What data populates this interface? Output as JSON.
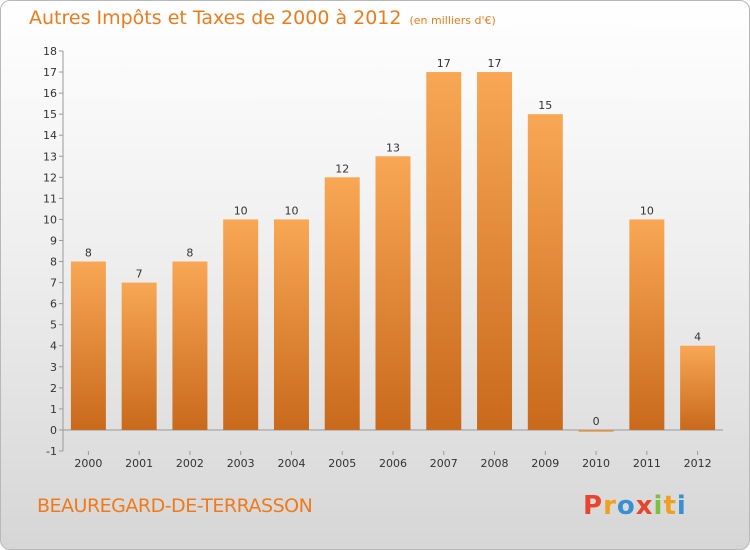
{
  "header": {
    "title": "Autres Impôts et Taxes de 2000 à 2012",
    "subtitle": "(en milliers d'€)"
  },
  "footer": {
    "place": "BEAUREGARD-DE-TERRASSON",
    "logo": [
      "P",
      "r",
      "o",
      "x",
      "i",
      "t",
      "i"
    ],
    "logo_colors": [
      "#e8452c",
      "#f0a020",
      "#3a8fd0",
      "#e8452c",
      "#7cc040",
      "#f0a020",
      "#3a8fd0"
    ]
  },
  "colors": {
    "bar_top": "#f8a755",
    "bar_bottom": "#c9691c",
    "title": "#f07a1a",
    "axis": "#999999"
  },
  "chart_data": {
    "type": "bar",
    "categories": [
      "2000",
      "2001",
      "2002",
      "2003",
      "2004",
      "2005",
      "2006",
      "2007",
      "2008",
      "2009",
      "2010",
      "2011",
      "2012"
    ],
    "values": [
      8,
      7,
      8,
      10,
      10,
      12,
      13,
      17,
      17,
      15,
      0,
      10,
      4
    ],
    "ylim": [
      -1,
      18
    ],
    "yticks": [
      -1,
      0,
      1,
      2,
      3,
      4,
      5,
      6,
      7,
      8,
      9,
      10,
      11,
      12,
      13,
      14,
      15,
      16,
      17,
      18
    ],
    "data_labels": [
      "8",
      "7",
      "8",
      "10",
      "10",
      "12",
      "13",
      "17",
      "17",
      "15",
      "0",
      "10",
      "4"
    ],
    "grid": false,
    "legend": "none"
  }
}
